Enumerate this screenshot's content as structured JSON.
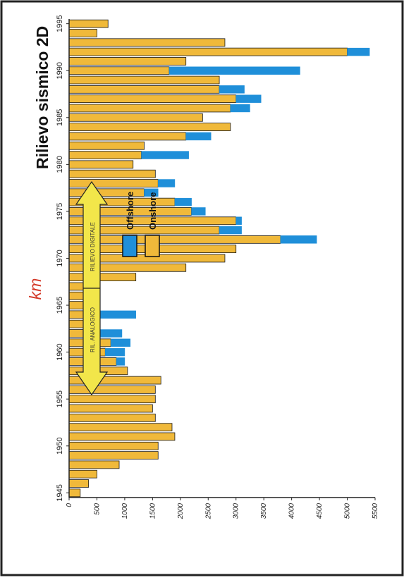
{
  "chart_data": {
    "type": "bar",
    "stacked": true,
    "orientation": "horizontal (page rotated 90°)",
    "title": "Rilievo sismico 2D",
    "ylabel": "km",
    "ylim": [
      0,
      5500
    ],
    "yticks": [
      "0",
      "500",
      "1000",
      "1500",
      "2000",
      "2500",
      "3000",
      "3500",
      "4000",
      "4500",
      "5000",
      "5500"
    ],
    "xticks": [
      "1945",
      "1950",
      "1955",
      "1960",
      "1965",
      "1970",
      "1975",
      "1980",
      "1985",
      "1990",
      "1995"
    ],
    "grid": false,
    "legend_placement": "left",
    "legend": [
      "Offshore",
      "Onshore"
    ],
    "annotations": {
      "left": "RIL. ANALOGICO",
      "right": "RILIEVO DIGITALE"
    },
    "categories": [
      "1945",
      "1946",
      "1947",
      "1948",
      "1949",
      "1950",
      "1951",
      "1952",
      "1953",
      "1954",
      "1955",
      "1956",
      "1957",
      "1958",
      "1959",
      "1960",
      "1961",
      "1962",
      "1963",
      "1964",
      "1965",
      "1966",
      "1967",
      "1968",
      "1969",
      "1970",
      "1971",
      "1972",
      "1973",
      "1974",
      "1975",
      "1976",
      "1977",
      "1978",
      "1979",
      "1980",
      "1981",
      "1982",
      "1983",
      "1984",
      "1985",
      "1986",
      "1987",
      "1988",
      "1989",
      "1990",
      "1991",
      "1992",
      "1993",
      "1994",
      "1995"
    ],
    "series": [
      {
        "name": "Onshore",
        "color": "#f0b93a",
        "values": [
          200,
          350,
          500,
          900,
          1600,
          1600,
          1900,
          1850,
          1550,
          1500,
          1550,
          1550,
          1650,
          1050,
          850,
          650,
          750,
          550,
          550,
          550,
          400,
          300,
          550,
          1200,
          2100,
          2800,
          3000,
          3800,
          2700,
          3000,
          2200,
          1900,
          1350,
          1600,
          1550,
          1150,
          1300,
          1350,
          2100,
          2900,
          2400,
          2900,
          3000,
          2700,
          2700,
          1800,
          2100,
          5000,
          2800,
          500,
          700
        ]
      },
      {
        "name": "Offshore",
        "color": "#1f8fd9",
        "values": [
          0,
          0,
          0,
          0,
          0,
          0,
          0,
          0,
          0,
          0,
          0,
          0,
          0,
          0,
          150,
          350,
          350,
          400,
          0,
          650,
          100,
          0,
          0,
          0,
          0,
          0,
          0,
          650,
          400,
          100,
          250,
          300,
          250,
          300,
          0,
          0,
          850,
          0,
          450,
          0,
          0,
          350,
          450,
          450,
          0,
          2350,
          0,
          400,
          0,
          0,
          0
        ]
      }
    ],
    "colors": {
      "onshore": "#f0b93a",
      "offshore": "#1f8fd9",
      "arrow_fill": "#f2e64a",
      "axis_label": "#d43a2a"
    }
  }
}
